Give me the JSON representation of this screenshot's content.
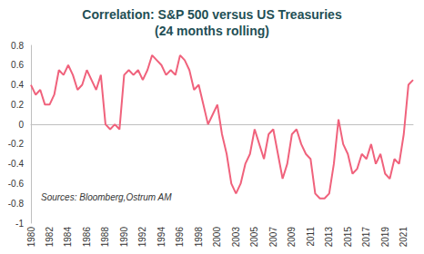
{
  "chart_data": {
    "type": "line",
    "title": "Correlation: S&P 500 versus US Treasuries",
    "subtitle": "(24 months rolling)",
    "annotation": "Sources: Bloomberg,Ostrum AM",
    "color": "#f0627c",
    "grid": false,
    "ylim": [
      -1,
      0.8
    ],
    "yticks": [
      -1,
      -0.8,
      -0.6,
      -0.4,
      -0.2,
      0,
      0.2,
      0.4,
      0.6,
      0.8
    ],
    "categories": [
      "1980",
      null,
      null,
      null,
      "1982",
      null,
      null,
      null,
      "1984",
      null,
      null,
      null,
      "1986",
      null,
      null,
      null,
      "1988",
      null,
      null,
      null,
      "1990",
      null,
      null,
      null,
      "1992",
      null,
      null,
      null,
      "1994",
      null,
      null,
      null,
      "1996",
      null,
      null,
      null,
      "1998",
      null,
      null,
      null,
      "2000",
      null,
      null,
      null,
      "2003",
      null,
      null,
      null,
      "2005",
      null,
      null,
      null,
      "2007",
      null,
      null,
      null,
      "2009",
      null,
      null,
      null,
      "2011",
      null,
      null,
      null,
      "2013",
      null,
      null,
      null,
      "2015",
      null,
      null,
      null,
      "2017",
      null,
      null,
      null,
      "2019",
      null,
      null,
      null,
      "2021",
      null,
      null
    ],
    "values": [
      0.4,
      0.3,
      0.35,
      0.2,
      0.2,
      0.3,
      0.55,
      0.5,
      0.6,
      0.5,
      0.35,
      0.4,
      0.55,
      0.45,
      0.35,
      0.5,
      0.0,
      -0.05,
      0.0,
      -0.05,
      0.5,
      0.55,
      0.5,
      0.55,
      0.45,
      0.55,
      0.7,
      0.65,
      0.6,
      0.5,
      0.55,
      0.5,
      0.7,
      0.65,
      0.55,
      0.35,
      0.4,
      0.2,
      0.0,
      0.1,
      0.2,
      -0.1,
      -0.3,
      -0.6,
      -0.7,
      -0.6,
      -0.4,
      -0.3,
      -0.05,
      -0.2,
      -0.35,
      -0.1,
      -0.05,
      -0.3,
      -0.55,
      -0.4,
      -0.1,
      -0.05,
      -0.2,
      -0.3,
      -0.35,
      -0.7,
      -0.75,
      -0.75,
      -0.7,
      -0.4,
      0.05,
      -0.2,
      -0.3,
      -0.5,
      -0.45,
      -0.3,
      -0.35,
      -0.2,
      -0.4,
      -0.3,
      -0.5,
      -0.55,
      -0.35,
      -0.4,
      -0.1,
      0.4,
      0.45
    ]
  }
}
